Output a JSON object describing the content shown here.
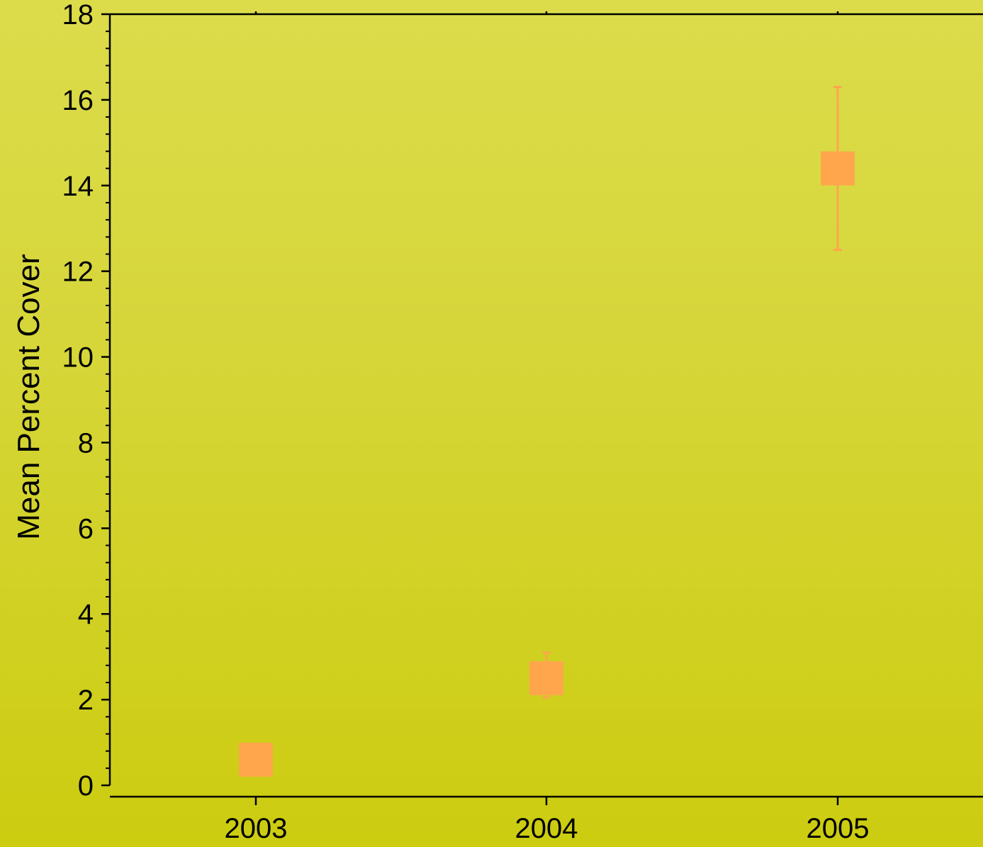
{
  "chart_data": {
    "type": "scatter",
    "title": "",
    "xlabel": "",
    "ylabel": "Mean Percent Cover",
    "categories": [
      "2003",
      "2004",
      "2005"
    ],
    "series": [
      {
        "values": [
          0.6,
          2.5,
          14.4
        ],
        "error_low": [
          0.6,
          2.05,
          12.5
        ],
        "error_high": [
          0.6,
          3.1,
          16.3
        ]
      }
    ],
    "ylim": [
      0,
      18
    ],
    "yticks": [
      "0",
      "2",
      "4",
      "6",
      "8",
      "10",
      "12",
      "14",
      "16",
      "18"
    ],
    "grid": false,
    "legend": "none",
    "colors": {
      "marker": "#ffa64d",
      "axis": "#000000"
    }
  }
}
